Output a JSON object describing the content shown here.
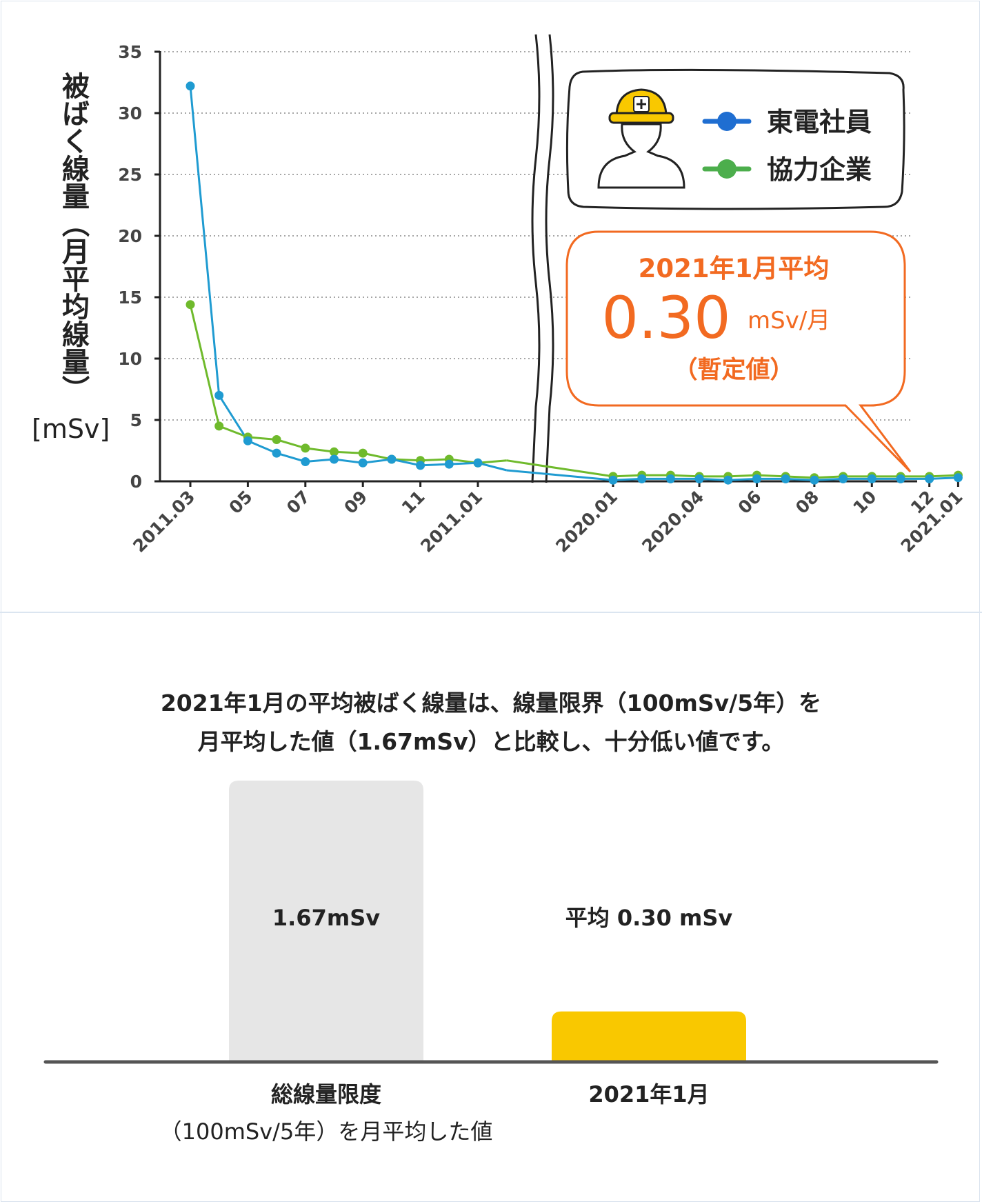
{
  "chart_data": [
    {
      "type": "line",
      "ylabel": "被ばく線量（月平均線量）",
      "yunit": "[mSv]",
      "ylim": [
        0,
        35
      ],
      "yticks": [
        0,
        5,
        10,
        15,
        20,
        25,
        30,
        35
      ],
      "grid": true,
      "axis_break": "between 2011.12 and 2020.01",
      "tick_labels": [
        "2011.03",
        "05",
        "07",
        "09",
        "11",
        "2011.01",
        "2020.01",
        "2020.04",
        "06",
        "08",
        "10",
        "12",
        "2021.01"
      ],
      "series": [
        {
          "name": "東電社員",
          "color": "#1f9bd1",
          "points": [
            {
              "x": "2011.03",
              "y": 32.2
            },
            {
              "x": "2011.04",
              "y": 7.0
            },
            {
              "x": "2011.05",
              "y": 3.3
            },
            {
              "x": "2011.06",
              "y": 2.3
            },
            {
              "x": "2011.07",
              "y": 1.6
            },
            {
              "x": "2011.08",
              "y": 1.8
            },
            {
              "x": "2011.09",
              "y": 1.5
            },
            {
              "x": "2011.10",
              "y": 1.8
            },
            {
              "x": "2011.11",
              "y": 1.3
            },
            {
              "x": "2011.12",
              "y": 1.4
            },
            {
              "x": "2011.01",
              "y": 1.5
            },
            {
              "x": "2011.02",
              "y": 0.9
            },
            {
              "x": "2020.01",
              "y": 0.1
            },
            {
              "x": "2020.02",
              "y": 0.2
            },
            {
              "x": "2020.03",
              "y": 0.2
            },
            {
              "x": "2020.04",
              "y": 0.2
            },
            {
              "x": "2020.05",
              "y": 0.1
            },
            {
              "x": "2020.06",
              "y": 0.2
            },
            {
              "x": "2020.07",
              "y": 0.2
            },
            {
              "x": "2020.08",
              "y": 0.1
            },
            {
              "x": "2020.09",
              "y": 0.2
            },
            {
              "x": "2020.10",
              "y": 0.2
            },
            {
              "x": "2020.11",
              "y": 0.2
            },
            {
              "x": "2020.12",
              "y": 0.2
            },
            {
              "x": "2021.01",
              "y": 0.3
            }
          ]
        },
        {
          "name": "協力企業",
          "color": "#6fba2c",
          "points": [
            {
              "x": "2011.03",
              "y": 14.4
            },
            {
              "x": "2011.04",
              "y": 4.5
            },
            {
              "x": "2011.05",
              "y": 3.6
            },
            {
              "x": "2011.06",
              "y": 3.4
            },
            {
              "x": "2011.07",
              "y": 2.7
            },
            {
              "x": "2011.08",
              "y": 2.4
            },
            {
              "x": "2011.09",
              "y": 2.3
            },
            {
              "x": "2011.10",
              "y": 1.8
            },
            {
              "x": "2011.11",
              "y": 1.7
            },
            {
              "x": "2011.12",
              "y": 1.8
            },
            {
              "x": "2011.01",
              "y": 1.5
            },
            {
              "x": "2011.02",
              "y": 1.7
            },
            {
              "x": "2020.01",
              "y": 0.4
            },
            {
              "x": "2020.02",
              "y": 0.5
            },
            {
              "x": "2020.03",
              "y": 0.5
            },
            {
              "x": "2020.04",
              "y": 0.4
            },
            {
              "x": "2020.05",
              "y": 0.4
            },
            {
              "x": "2020.06",
              "y": 0.5
            },
            {
              "x": "2020.07",
              "y": 0.4
            },
            {
              "x": "2020.08",
              "y": 0.3
            },
            {
              "x": "2020.09",
              "y": 0.4
            },
            {
              "x": "2020.10",
              "y": 0.4
            },
            {
              "x": "2020.11",
              "y": 0.4
            },
            {
              "x": "2020.12",
              "y": 0.4
            },
            {
              "x": "2021.01",
              "y": 0.5
            }
          ]
        }
      ],
      "legend_position": "top-right",
      "legend_icon": "worker-helmet-icon",
      "callout": {
        "title": "2021年1月平均",
        "value": "0.30",
        "unit": "mSv/月",
        "note": "（暫定値）",
        "color": "#f26a21"
      }
    },
    {
      "type": "bar",
      "categories": [
        "総線量限度\n（100mSv/5年）を月平均した値",
        "2021年1月"
      ],
      "category_line1": "総線量限度",
      "category_line2": "（100mSv/5年）を月平均した値",
      "category2": "2021年1月",
      "values": [
        1.67,
        0.3
      ],
      "value_labels": [
        "1.67mSv",
        "平均 0.30 mSv"
      ],
      "colors": [
        "#e6e6e6",
        "#f9c800"
      ],
      "ylim": [
        0,
        1.67
      ]
    }
  ],
  "summary": {
    "line1": "2021年1月の平均被ばく線量は、線量限界（100mSv/5年）を",
    "line2": "月平均した値（1.67mSv）と比較し、十分低い値です。"
  }
}
